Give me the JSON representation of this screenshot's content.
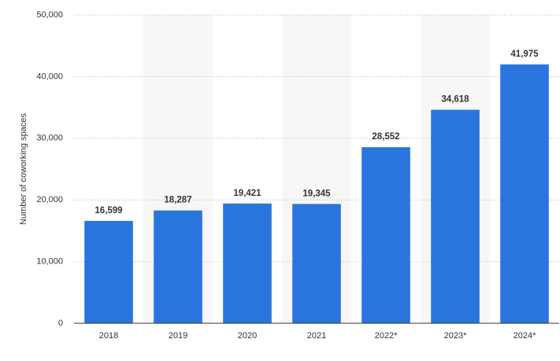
{
  "chart_data": {
    "type": "bar",
    "y_label": "Number of coworking spaces",
    "categories": [
      "2018",
      "2019",
      "2020",
      "2021",
      "2022*",
      "2023*",
      "2024*"
    ],
    "values": [
      16599,
      18287,
      19421,
      19345,
      28552,
      34618,
      41975
    ],
    "value_labels": [
      "16,599",
      "18,287",
      "19,421",
      "19,345",
      "28,552",
      "34,618",
      "41,975"
    ],
    "color": "#2876dd",
    "ylim": [
      0,
      50000
    ],
    "yticks": [
      0,
      {
        "value": 10000,
        "label": "10,000"
      },
      {
        "value": 20000,
        "label": "20,000"
      },
      {
        "value": 30000,
        "label": "30,000"
      },
      {
        "value": 40000,
        "label": "40,000"
      },
      {
        "value": 50000,
        "label": "50,000"
      }
    ],
    "grid": true
  }
}
